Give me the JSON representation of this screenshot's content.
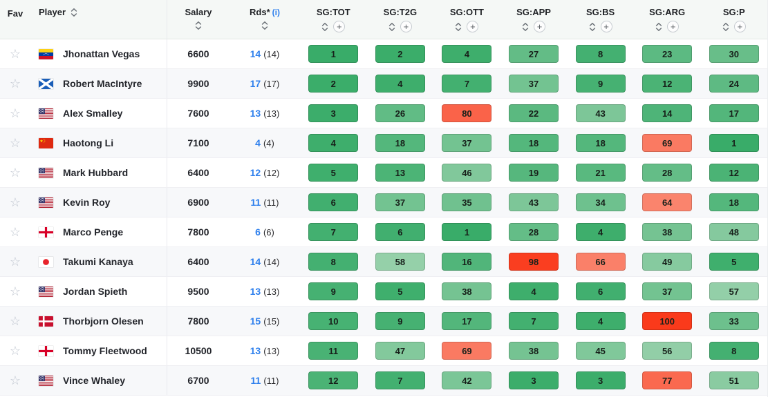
{
  "header": {
    "fav": "Fav",
    "player": "Player",
    "salary": "Salary",
    "rds": "Rds*",
    "rds_info": "(i)",
    "add_label": "+",
    "star_glyph": "☆",
    "sg_columns": [
      "SG:TOT",
      "SG:T2G",
      "SG:OTT",
      "SG:APP",
      "SG:BS",
      "SG:ARG",
      "SG:P"
    ]
  },
  "colors": {
    "accent_blue": "#2f80ed",
    "header_bg": "#f5f8f6",
    "row_alt_bg": "#f7f8fa",
    "chip_green_best": "#39AC69",
    "chip_green_worst": "#98D1AB",
    "chip_red_mild": "#FA8A74",
    "chip_red_worst": "#FA3A1B",
    "green_max_rank": 60
  },
  "players": [
    {
      "name": "Jhonattan Vegas",
      "flag": "venezuela",
      "salary": "6600",
      "rds": "14",
      "rds_total": "(14)",
      "sg": [
        1,
        2,
        4,
        27,
        8,
        23,
        30
      ]
    },
    {
      "name": "Robert MacIntyre",
      "flag": "scotland",
      "salary": "9900",
      "rds": "17",
      "rds_total": "(17)",
      "sg": [
        2,
        4,
        7,
        37,
        9,
        12,
        24
      ]
    },
    {
      "name": "Alex Smalley",
      "flag": "usa",
      "salary": "7600",
      "rds": "13",
      "rds_total": "(13)",
      "sg": [
        3,
        26,
        80,
        22,
        43,
        14,
        17
      ]
    },
    {
      "name": "Haotong Li",
      "flag": "china",
      "salary": "7100",
      "rds": "4",
      "rds_total": "(4)",
      "sg": [
        4,
        18,
        37,
        18,
        18,
        69,
        1
      ]
    },
    {
      "name": "Mark Hubbard",
      "flag": "usa",
      "salary": "6400",
      "rds": "12",
      "rds_total": "(12)",
      "sg": [
        5,
        13,
        46,
        19,
        21,
        28,
        12
      ]
    },
    {
      "name": "Kevin Roy",
      "flag": "usa",
      "salary": "6900",
      "rds": "11",
      "rds_total": "(11)",
      "sg": [
        6,
        37,
        35,
        43,
        34,
        64,
        18
      ]
    },
    {
      "name": "Marco Penge",
      "flag": "england",
      "salary": "7800",
      "rds": "6",
      "rds_total": "(6)",
      "sg": [
        7,
        6,
        1,
        28,
        4,
        38,
        48
      ]
    },
    {
      "name": "Takumi Kanaya",
      "flag": "japan",
      "salary": "6400",
      "rds": "14",
      "rds_total": "(14)",
      "sg": [
        8,
        58,
        16,
        98,
        66,
        49,
        5
      ]
    },
    {
      "name": "Jordan Spieth",
      "flag": "usa",
      "salary": "9500",
      "rds": "13",
      "rds_total": "(13)",
      "sg": [
        9,
        5,
        38,
        4,
        6,
        37,
        57
      ]
    },
    {
      "name": "Thorbjorn Olesen",
      "flag": "denmark",
      "salary": "7800",
      "rds": "15",
      "rds_total": "(15)",
      "sg": [
        10,
        9,
        17,
        7,
        4,
        100,
        33
      ]
    },
    {
      "name": "Tommy Fleetwood",
      "flag": "england",
      "salary": "10500",
      "rds": "13",
      "rds_total": "(13)",
      "sg": [
        11,
        47,
        69,
        38,
        45,
        56,
        8
      ]
    },
    {
      "name": "Vince Whaley",
      "flag": "usa",
      "salary": "6700",
      "rds": "11",
      "rds_total": "(11)",
      "sg": [
        12,
        7,
        42,
        3,
        3,
        77,
        51
      ]
    }
  ]
}
